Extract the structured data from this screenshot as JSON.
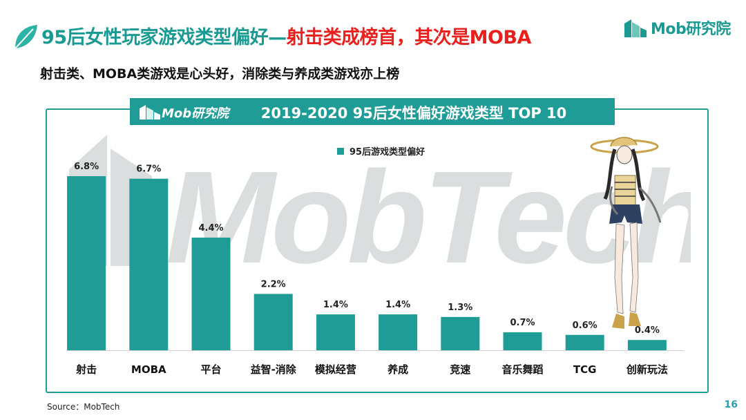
{
  "header": {
    "title_part1": "95后女性玩家游戏类型偏好—",
    "title_part2": "射击类成榜首，其次是MOBA",
    "subtitle": "射击类、MOBA类游戏是心头好，消除类与养成类游戏亦上榜",
    "logo_text": "Mob研究院"
  },
  "banner": {
    "logo_text": "Mob研究院",
    "title": "2019-2020 95后女性偏好游戏类型 TOP 10"
  },
  "watermark_text": "MobTech",
  "footer": {
    "source": "Source：MobTech",
    "page_number": "16"
  },
  "colors": {
    "bar": "#1f9c95",
    "title_teal": "#1a9a93",
    "title_red": "#e8201e"
  },
  "chart_data": {
    "type": "bar",
    "categories": [
      "射击",
      "MOBA",
      "平台",
      "益智-消除",
      "模拟经营",
      "养成",
      "竞速",
      "音乐舞蹈",
      "TCG",
      "创新玩法"
    ],
    "series": [
      {
        "name": "95后游戏类型偏好",
        "values": [
          6.8,
          6.7,
          4.4,
          2.2,
          1.4,
          1.4,
          1.3,
          0.7,
          0.6,
          0.4
        ]
      }
    ],
    "value_labels": [
      "6.8%",
      "6.7%",
      "4.4%",
      "2.2%",
      "1.4%",
      "1.4%",
      "1.3%",
      "0.7%",
      "0.6%",
      "0.4%"
    ],
    "ylim": [
      0,
      6.8
    ],
    "legend_position": "top-center",
    "grid": false
  }
}
